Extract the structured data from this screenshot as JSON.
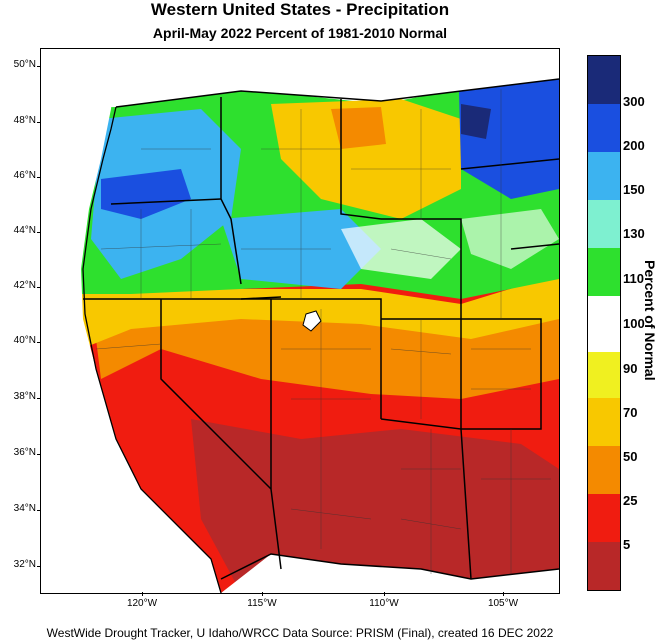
{
  "title": "Western United States - Precipitation",
  "subtitle": "April-May 2022  Percent of 1981-2010 Normal",
  "legend_title": "Percent of Normal",
  "legend_labels": [
    "300",
    "200",
    "150",
    "130",
    "110",
    "100",
    "90",
    "70",
    "50",
    "25",
    "5"
  ],
  "legend_colors": [
    "#1a2a78",
    "#1a4fe0",
    "#3cb3f0",
    "#7ef0d0",
    "#2ee02e",
    "#ffffff",
    "#f0f020",
    "#f8c800",
    "#f48a00",
    "#f01c10",
    "#b82828"
  ],
  "lat_labels": [
    "50°N",
    "48°N",
    "46°N",
    "44°N",
    "42°N",
    "40°N",
    "38°N",
    "36°N",
    "34°N",
    "32°N"
  ],
  "lon_labels": [
    "120°W",
    "115°W",
    "110°W",
    "105°W"
  ],
  "footer": "WestWide Drought Tracker, U Idaho/WRCC Data Source: PRISM (Final), created 16 DEC 2022"
}
